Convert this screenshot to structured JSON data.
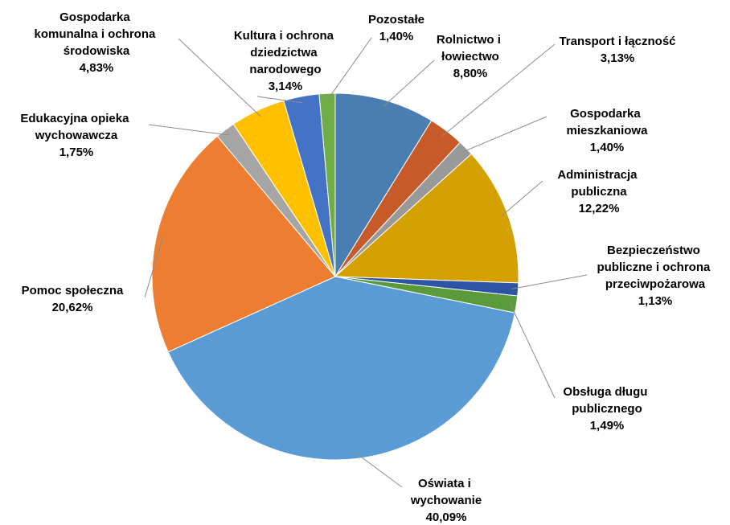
{
  "chart_data": {
    "type": "pie",
    "categories": [
      "Rolnictwo i łowiectwo",
      "Transport i łączność",
      "Gospodarka mieszkaniowa",
      "Administracja publiczna",
      "Bezpieczeństwo publiczne i ochrona przeciwpożarowa",
      "Obsługa długu publicznego",
      "Oświata i wychowanie",
      "Pomoc społeczna",
      "Edukacyjna opieka wychowawcza",
      "Gospodarka komunalna i ochrona środowiska",
      "Kultura i ochrona dziedzictwa narodowego",
      "Pozostałe"
    ],
    "values": [
      8.8,
      3.13,
      1.4,
      12.22,
      1.13,
      1.49,
      40.09,
      20.62,
      1.75,
      4.83,
      3.14,
      1.4
    ],
    "value_labels": [
      "8,80%",
      "3,13%",
      "1,40%",
      "12,22%",
      "1,13%",
      "1,49%",
      "40,09%",
      "20,62%",
      "1,75%",
      "4,83%",
      "3,14%",
      "1,40%"
    ],
    "colors": [
      "#4a7eb1",
      "#c65a28",
      "#999999",
      "#d5a100",
      "#2d55a3",
      "#5a9a3a",
      "#5b9bd5",
      "#ed7d31",
      "#a5a5a5",
      "#ffc000",
      "#4472c4",
      "#70ad47"
    ]
  }
}
